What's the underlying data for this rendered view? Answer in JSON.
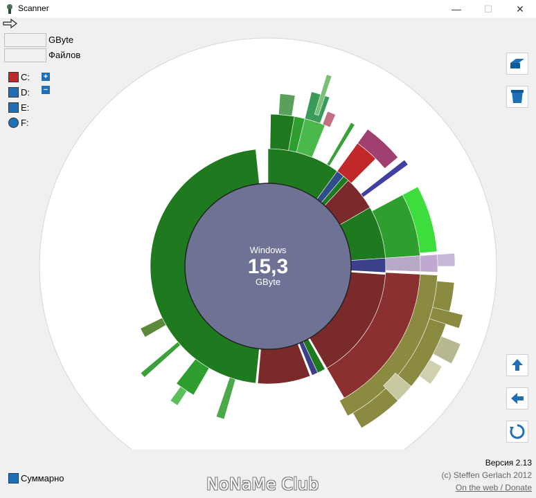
{
  "window": {
    "title": "Scanner",
    "minimize": "—",
    "maximize": "☐",
    "close": "✕"
  },
  "stats": {
    "size_value": "",
    "size_unit": "GByte",
    "files_value": "",
    "files_unit": "Файлов"
  },
  "drives": [
    {
      "label": "C:",
      "icon": "hard-drive-red",
      "color": "#c0282a"
    },
    {
      "label": "D:",
      "icon": "hard-drive",
      "color": "#1e6fb5"
    },
    {
      "label": "E:",
      "icon": "hard-drive",
      "color": "#1e6fb5"
    },
    {
      "label": "F:",
      "icon": "optical-disc",
      "color": "#1e6fb5"
    }
  ],
  "chart": {
    "center_name": "Windows",
    "center_value": "15,3",
    "center_unit": "GByte",
    "center_color": "#6e7396"
  },
  "sidebar_buttons": [
    "open-drive-icon",
    "trash-icon",
    "up-icon",
    "back-icon",
    "refresh-icon"
  ],
  "summary": {
    "label": "Суммарно"
  },
  "footer": {
    "version": "Версия 2.13",
    "copyright": "(c) Steffen Gerlach 2012",
    "link": "On the web / Donate"
  },
  "watermark": "NoNaMe Club"
}
